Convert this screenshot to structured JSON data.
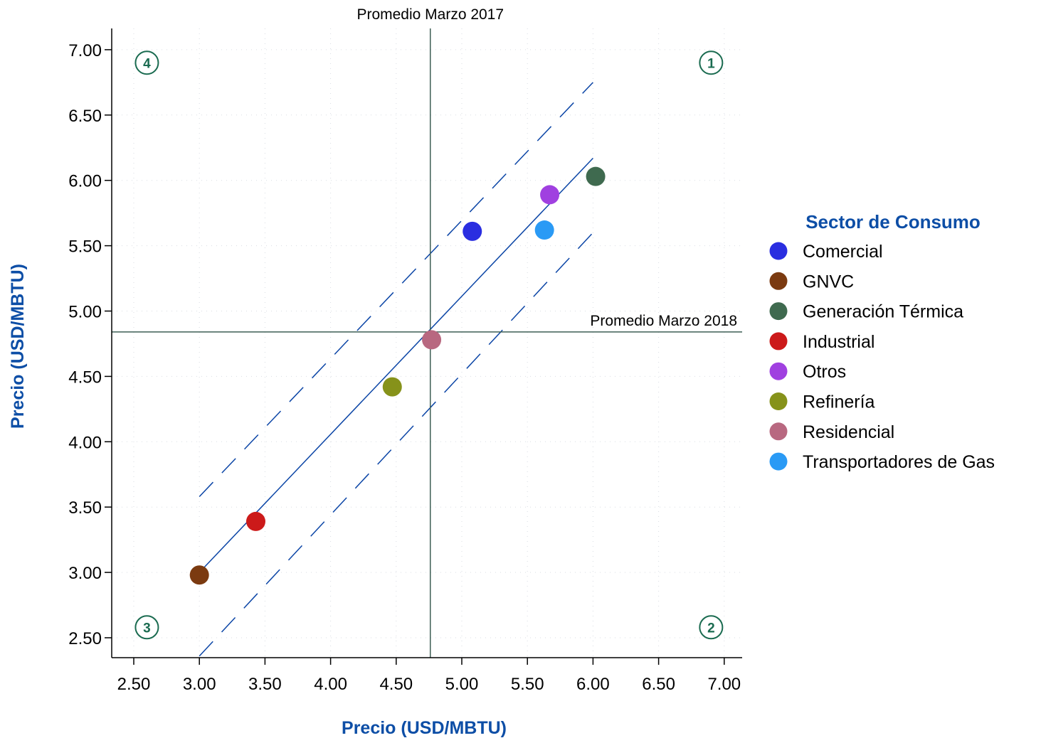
{
  "chart_data": {
    "type": "scatter",
    "xlabel": "Precio (USD/MBTU)",
    "ylabel": "Precio (USD/MBTU)",
    "xlim": [
      2.33,
      7.17
    ],
    "ylim": [
      2.35,
      7.17
    ],
    "xticks": [
      "2.50",
      "3.00",
      "3.50",
      "4.00",
      "4.50",
      "5.00",
      "5.50",
      "6.00",
      "6.50",
      "7.00"
    ],
    "yticks": [
      "2.50",
      "3.00",
      "3.50",
      "4.00",
      "4.50",
      "5.00",
      "5.50",
      "6.00",
      "6.50",
      "7.00"
    ],
    "grid": true,
    "legend_title": "Sector de Consumo",
    "legend_position": "right",
    "series": [
      {
        "name": "Comercial",
        "color": "#2a2ee0",
        "x": 5.08,
        "y": 5.61
      },
      {
        "name": "GNVC",
        "color": "#7b3a10",
        "x": 3.0,
        "y": 2.98
      },
      {
        "name": "Generación Térmica",
        "color": "#3f6a4f",
        "x": 6.02,
        "y": 6.03
      },
      {
        "name": "Industrial",
        "color": "#cc1a1a",
        "x": 3.43,
        "y": 3.39
      },
      {
        "name": "Otros",
        "color": "#a040e0",
        "x": 5.67,
        "y": 5.89
      },
      {
        "name": "Refinería",
        "color": "#86921a",
        "x": 4.47,
        "y": 4.42
      },
      {
        "name": "Residencial",
        "color": "#b86880",
        "x": 4.77,
        "y": 4.78
      },
      {
        "name": "Transportadores de Gas",
        "color": "#2a9af5",
        "x": 5.63,
        "y": 5.62
      }
    ],
    "reference_lines": [
      {
        "axis": "x",
        "value": 4.76,
        "label": "Promedio Marzo 2017"
      },
      {
        "axis": "y",
        "value": 4.84,
        "label": "Promedio Marzo 2018"
      }
    ],
    "trend_line": {
      "x": [
        3.0,
        6.0
      ],
      "y": [
        3.0,
        6.17
      ]
    },
    "band_upper": {
      "x": [
        3.0,
        6.0
      ],
      "y": [
        3.58,
        6.75
      ]
    },
    "band_lower": {
      "x": [
        3.0,
        6.0
      ],
      "y": [
        2.36,
        5.6
      ]
    },
    "quadrants": [
      {
        "label": "1",
        "x": 6.9,
        "y": 6.9
      },
      {
        "label": "2",
        "x": 6.9,
        "y": 2.58
      },
      {
        "label": "3",
        "x": 2.6,
        "y": 2.58
      },
      {
        "label": "4",
        "x": 2.6,
        "y": 6.9
      }
    ]
  }
}
